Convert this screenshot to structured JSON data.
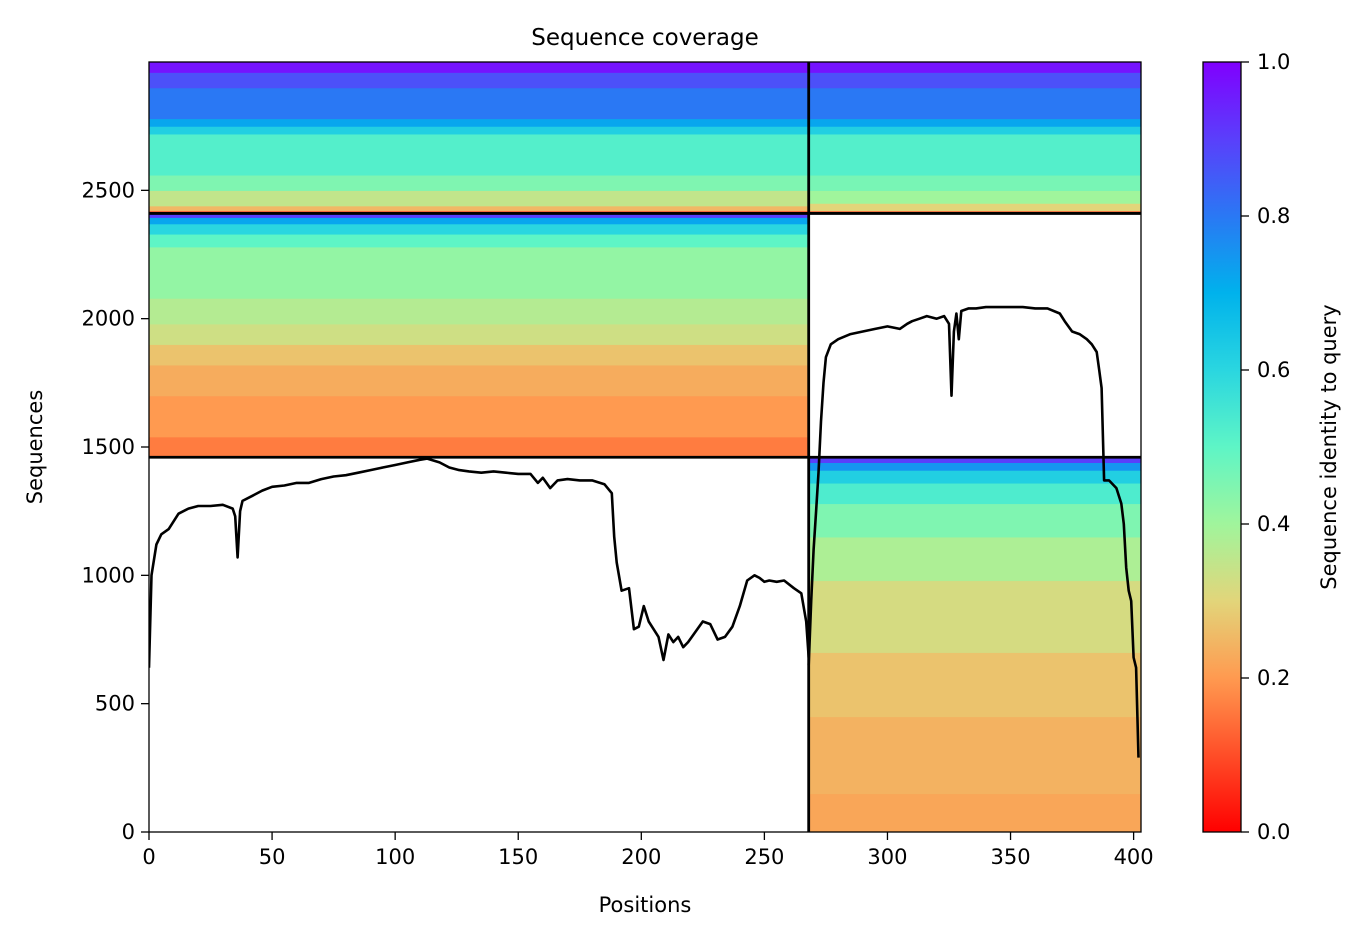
{
  "chart_data": {
    "type": "heatmap",
    "title": "Sequence coverage",
    "xlabel": "Positions",
    "ylabel": "Sequences",
    "xlim": [
      0,
      403
    ],
    "ylim": [
      0,
      3000
    ],
    "xticks": [
      0,
      50,
      100,
      150,
      200,
      250,
      300,
      350,
      400
    ],
    "yticks": [
      0,
      500,
      1000,
      1500,
      2000,
      2500
    ],
    "colormap": "rainbow_r",
    "colorbar": {
      "label": "Sequence identity to query",
      "range": [
        0,
        1
      ],
      "ticks": [
        0.0,
        0.2,
        0.4,
        0.6,
        0.8,
        1.0
      ]
    },
    "blocks": [
      {
        "x": [
          0,
          268
        ],
        "y": [
          2410,
          3000
        ],
        "identity_bands": [
          {
            "y": [
              2410,
              2420
            ],
            "v": 0.05
          },
          {
            "y": [
              2420,
              2440
            ],
            "v": 0.25
          },
          {
            "y": [
              2440,
              2500
            ],
            "v": 0.35
          },
          {
            "y": [
              2500,
              2560
            ],
            "v": 0.45
          },
          {
            "y": [
              2560,
              2720
            ],
            "v": 0.52
          },
          {
            "y": [
              2720,
              2750
            ],
            "v": 0.62
          },
          {
            "y": [
              2750,
              2780
            ],
            "v": 0.72
          },
          {
            "y": [
              2780,
              2900
            ],
            "v": 0.8
          },
          {
            "y": [
              2900,
              2960
            ],
            "v": 0.87
          },
          {
            "y": [
              2960,
              3000
            ],
            "v": 0.97
          }
        ]
      },
      {
        "x": [
          268,
          403
        ],
        "y": [
          2410,
          3000
        ],
        "identity_bands": [
          {
            "y": [
              2410,
              2420
            ],
            "v": 0.05
          },
          {
            "y": [
              2420,
              2450
            ],
            "v": 0.3
          },
          {
            "y": [
              2450,
              2500
            ],
            "v": 0.4
          },
          {
            "y": [
              2500,
              2560
            ],
            "v": 0.46
          },
          {
            "y": [
              2560,
              2720
            ],
            "v": 0.52
          },
          {
            "y": [
              2720,
              2750
            ],
            "v": 0.62
          },
          {
            "y": [
              2750,
              2780
            ],
            "v": 0.72
          },
          {
            "y": [
              2780,
              2900
            ],
            "v": 0.8
          },
          {
            "y": [
              2900,
              2960
            ],
            "v": 0.87
          },
          {
            "y": [
              2960,
              3000
            ],
            "v": 0.97
          }
        ]
      },
      {
        "x": [
          0,
          268
        ],
        "y": [
          1460,
          2410
        ],
        "identity_bands": [
          {
            "y": [
              1460,
              1540
            ],
            "v": 0.16
          },
          {
            "y": [
              1540,
              1700
            ],
            "v": 0.2
          },
          {
            "y": [
              1700,
              1820
            ],
            "v": 0.23
          },
          {
            "y": [
              1820,
              1900
            ],
            "v": 0.27
          },
          {
            "y": [
              1900,
              1980
            ],
            "v": 0.33
          },
          {
            "y": [
              1980,
              2080
            ],
            "v": 0.37
          },
          {
            "y": [
              2080,
              2280
            ],
            "v": 0.42
          },
          {
            "y": [
              2280,
              2330
            ],
            "v": 0.5
          },
          {
            "y": [
              2330,
              2370
            ],
            "v": 0.6
          },
          {
            "y": [
              2370,
              2395
            ],
            "v": 0.72
          },
          {
            "y": [
              2395,
              2410
            ],
            "v": 0.9
          }
        ]
      },
      {
        "x": [
          268,
          403
        ],
        "y": [
          0,
          1460
        ],
        "identity_bands": [
          {
            "y": [
              0,
              150
            ],
            "v": 0.22
          },
          {
            "y": [
              150,
              450
            ],
            "v": 0.24
          },
          {
            "y": [
              450,
              700
            ],
            "v": 0.27
          },
          {
            "y": [
              700,
              980
            ],
            "v": 0.32
          },
          {
            "y": [
              980,
              1150
            ],
            "v": 0.38
          },
          {
            "y": [
              1150,
              1280
            ],
            "v": 0.45
          },
          {
            "y": [
              1280,
              1360
            ],
            "v": 0.53
          },
          {
            "y": [
              1360,
              1410
            ],
            "v": 0.62
          },
          {
            "y": [
              1410,
              1440
            ],
            "v": 0.75
          },
          {
            "y": [
              1440,
              1460
            ],
            "v": 0.9
          }
        ]
      }
    ],
    "dividers": {
      "x": 268,
      "y": [
        1460,
        2410
      ]
    },
    "coverage_lines": [
      {
        "x": [
          0,
          1,
          3,
          5,
          8,
          12,
          16,
          20,
          25,
          30,
          34,
          35,
          36,
          37,
          38,
          42,
          46,
          50,
          55,
          60,
          65,
          70,
          75,
          80,
          85,
          90,
          95,
          100,
          105,
          110,
          113,
          118,
          122,
          126,
          130,
          135,
          140,
          145,
          150,
          155,
          158,
          160,
          163,
          166,
          170,
          175,
          180,
          185,
          188,
          189,
          190,
          192,
          195,
          197,
          199,
          201,
          203,
          205,
          207,
          209,
          211,
          213,
          215,
          217,
          219,
          222,
          225,
          228,
          231,
          234,
          237,
          240,
          243,
          246,
          248,
          250,
          252,
          255,
          258,
          262,
          265,
          267,
          268
        ],
        "y": [
          640,
          1000,
          1120,
          1160,
          1180,
          1240,
          1260,
          1270,
          1270,
          1275,
          1260,
          1230,
          1070,
          1250,
          1290,
          1310,
          1330,
          1345,
          1350,
          1360,
          1360,
          1375,
          1385,
          1390,
          1400,
          1410,
          1420,
          1430,
          1440,
          1450,
          1455,
          1440,
          1420,
          1410,
          1405,
          1400,
          1405,
          1400,
          1395,
          1395,
          1360,
          1380,
          1340,
          1370,
          1375,
          1370,
          1370,
          1355,
          1320,
          1150,
          1050,
          940,
          950,
          790,
          800,
          880,
          820,
          790,
          760,
          670,
          770,
          740,
          760,
          720,
          740,
          780,
          820,
          810,
          750,
          760,
          800,
          880,
          980,
          1000,
          990,
          975,
          980,
          975,
          980,
          950,
          930,
          820,
          680
        ]
      },
      {
        "x": [
          268,
          269,
          270,
          271,
          272,
          273,
          274,
          275,
          277,
          280,
          285,
          290,
          295,
          300,
          305,
          308,
          310,
          313,
          316,
          320,
          323,
          325,
          326,
          327,
          328,
          329,
          330,
          333,
          336,
          340,
          345,
          350,
          355,
          360,
          365,
          370,
          372,
          375,
          378,
          381,
          383,
          385,
          386,
          387,
          388,
          390,
          393,
          395,
          396,
          397,
          398,
          399,
          400,
          401,
          402
        ],
        "y": [
          650,
          900,
          1100,
          1250,
          1400,
          1600,
          1750,
          1850,
          1900,
          1920,
          1940,
          1950,
          1960,
          1970,
          1960,
          1980,
          1990,
          2000,
          2010,
          2000,
          2010,
          1980,
          1700,
          1950,
          2020,
          1920,
          2030,
          2040,
          2040,
          2045,
          2045,
          2045,
          2045,
          2040,
          2040,
          2020,
          1990,
          1950,
          1940,
          1920,
          1900,
          1870,
          1800,
          1730,
          1370,
          1370,
          1340,
          1280,
          1200,
          1030,
          940,
          900,
          680,
          640,
          290
        ]
      }
    ]
  }
}
